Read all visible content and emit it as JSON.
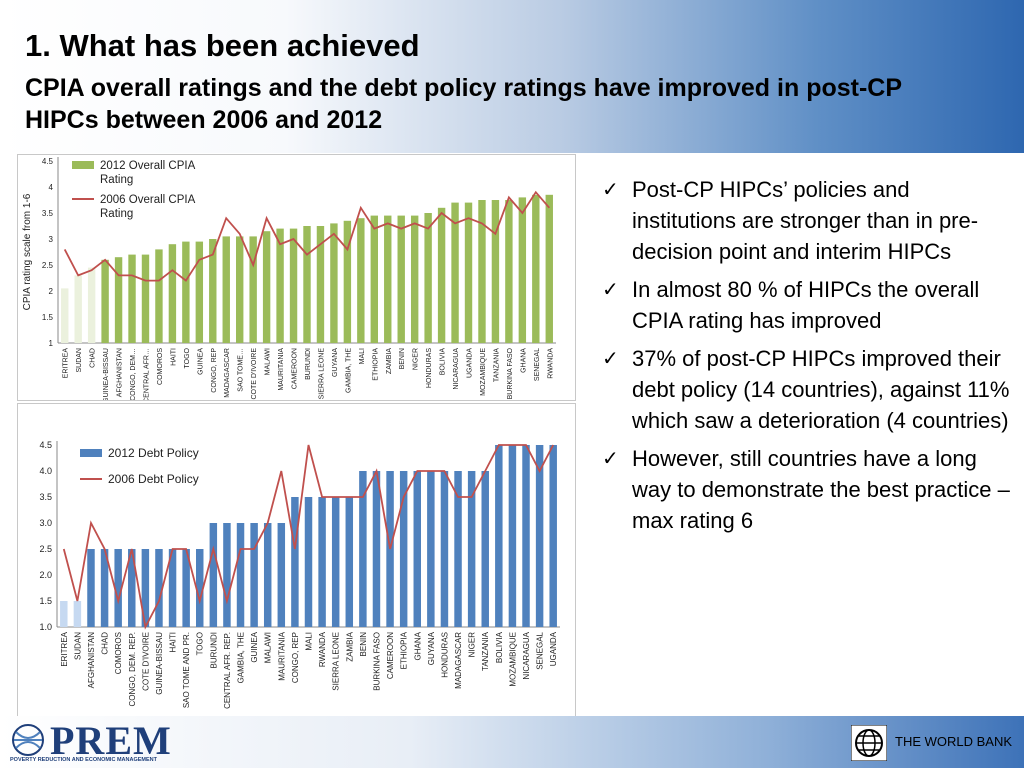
{
  "slide": {
    "title": "1. What has been achieved",
    "subtitle": "CPIA overall ratings and the debt policy ratings have improved in post-CP HIPCs between 2006 and 2012"
  },
  "bullets": [
    "Post-CP HIPCs’ policies and institutions are stronger than in pre-decision point and interim HIPCs",
    "In almost 80 % of HIPCs the overall CPIA rating has improved",
    "37% of post-CP HIPCs improved their debt policy (14 countries), against 11% which saw a deterioration (4 countries)",
    "However, still countries have a long way to demonstrate the best practice – max rating 6"
  ],
  "footer": {
    "prem_logo_text": "PREM",
    "prem_tagline": "POVERTY REDUCTION AND ECONOMIC MANAGEMENT",
    "world_bank_text": "THE WORLD BANK"
  },
  "colors": {
    "bar_green": "#9bbb59",
    "bar_green_light": "#ebf1dd",
    "bar_blue": "#4f81bd",
    "bar_blue_light": "#c6d9f1",
    "line_red": "#c0504d"
  },
  "chart_data": [
    {
      "type": "bar",
      "ylabel": "CPIA rating scale from 1-6",
      "ylim": [
        1,
        4.5
      ],
      "yticks": [
        "1",
        "1.5",
        "2",
        "2.5",
        "3",
        "3.5",
        "4",
        "4.5"
      ],
      "legend": "top-left",
      "categories": [
        "ERITREA",
        "SUDAN",
        "CHAD",
        "GUINEA-BISSAU",
        "AFGHANISTAN",
        "CONGO, DEM…",
        "CENTRAL AFR…",
        "COMOROS",
        "HAITI",
        "TOGO",
        "GUINEA",
        "CONGO, REP",
        "MADAGASCAR",
        "SAO TOME…",
        "COTE D'IVOIRE",
        "MALAWI",
        "MAURITANIA",
        "CAMEROON",
        "BURUNDI",
        "SIERRA LEONE",
        "GUYANA",
        "GAMBIA, THE",
        "MALI",
        "ETHIOPIA",
        "ZAMBIA",
        "BENIN",
        "NIGER",
        "HONDURAS",
        "BOLIVIA",
        "NICARAGUA",
        "UGANDA",
        "MOZAMBIQUE",
        "TANZANIA",
        "BURKINA FASO",
        "GHANA",
        "SENEGAL",
        "RWANDA"
      ],
      "light_categories": 3,
      "series": [
        {
          "name": "2012 Overall CPIA Rating",
          "type": "bar",
          "values": [
            2.05,
            2.3,
            2.45,
            2.6,
            2.65,
            2.7,
            2.7,
            2.8,
            2.9,
            2.95,
            2.95,
            3.0,
            3.05,
            3.05,
            3.05,
            3.15,
            3.2,
            3.2,
            3.25,
            3.25,
            3.3,
            3.35,
            3.4,
            3.45,
            3.45,
            3.45,
            3.45,
            3.5,
            3.6,
            3.7,
            3.7,
            3.75,
            3.75,
            3.75,
            3.8,
            3.85,
            3.85
          ]
        },
        {
          "name": "2006 Overall CPIA Rating",
          "type": "line",
          "values": [
            2.8,
            2.3,
            2.4,
            2.6,
            2.3,
            2.3,
            2.2,
            2.2,
            2.4,
            2.2,
            2.6,
            2.7,
            3.4,
            3.1,
            2.5,
            3.4,
            2.9,
            3.0,
            2.7,
            2.9,
            3.1,
            2.8,
            3.6,
            3.2,
            3.3,
            3.2,
            3.3,
            3.2,
            3.5,
            3.3,
            3.4,
            3.3,
            3.1,
            3.8,
            3.5,
            3.9,
            3.6
          ]
        }
      ]
    },
    {
      "type": "bar",
      "ylim": [
        1,
        4.5
      ],
      "yticks": [
        "1.0",
        "1.5",
        "2.0",
        "2.5",
        "3.0",
        "3.5",
        "4.0",
        "4.5"
      ],
      "legend": "top-left",
      "categories": [
        "ERITREA",
        "SUDAN",
        "AFGHANISTAN",
        "CHAD",
        "COMOROS",
        "CONGO, DEM. REP.",
        "COTE D'IVOIRE",
        "GUINEA-BISSAU",
        "HAITI",
        "SAO TOME AND PR.",
        "TOGO",
        "BURUNDI",
        "CENTRAL AFR. REP.",
        "GAMBIA, THE",
        "GUINEA",
        "MALAWI",
        "MAURITANIA",
        "CONGO, REP",
        "MALI",
        "RWANDA",
        "SIERRA LEONE",
        "ZAMBIA",
        "BENIN",
        "BURKINA FASO",
        "CAMEROON",
        "ETHIOPIA",
        "GHANA",
        "GUYANA",
        "HONDURAS",
        "MADAGASCAR",
        "NIGER",
        "TANZANIA",
        "BOLIVIA",
        "MOZAMBIQUE",
        "NICARAGUA",
        "SENEGAL",
        "UGANDA"
      ],
      "light_categories": 2,
      "series": [
        {
          "name": "2012 Debt Policy",
          "type": "bar",
          "values": [
            1.5,
            1.5,
            2.5,
            2.5,
            2.5,
            2.5,
            2.5,
            2.5,
            2.5,
            2.5,
            2.5,
            3.0,
            3.0,
            3.0,
            3.0,
            3.0,
            3.0,
            3.5,
            3.5,
            3.5,
            3.5,
            3.5,
            4.0,
            4.0,
            4.0,
            4.0,
            4.0,
            4.0,
            4.0,
            4.0,
            4.0,
            4.0,
            4.5,
            4.5,
            4.5,
            4.5,
            4.5
          ]
        },
        {
          "name": "2006 Debt Policy",
          "type": "line",
          "values": [
            2.5,
            1.5,
            3.0,
            2.5,
            1.5,
            2.5,
            1.0,
            1.5,
            2.5,
            2.5,
            1.5,
            2.5,
            1.5,
            2.5,
            2.5,
            3.0,
            4.0,
            2.5,
            4.5,
            3.5,
            3.5,
            3.5,
            3.5,
            4.0,
            2.5,
            3.5,
            4.0,
            4.0,
            4.0,
            3.5,
            3.5,
            4.0,
            4.5,
            4.5,
            4.5,
            4.0,
            4.5
          ]
        }
      ]
    }
  ]
}
